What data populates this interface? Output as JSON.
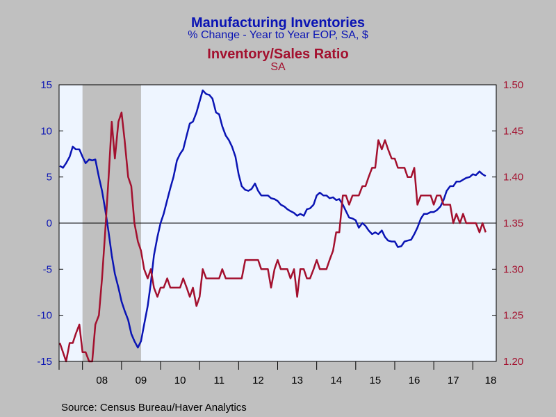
{
  "titles": {
    "line1": "Manufacturing Inventories",
    "line2": "% Change - Year to Year    EOP, SA, $",
    "line3": "Inventory/Sales Ratio",
    "line4": "SA"
  },
  "source": "Source:  Census Bureau/Haver Analytics",
  "colors": {
    "blue": "#0a14b4",
    "red": "#a3102e",
    "plot_bg": "#eef5ff",
    "recession": "#c0c0c0",
    "frame_bg": "#c0c0c0"
  },
  "chart_data": {
    "type": "line",
    "x_tick_labels": [
      "08",
      "09",
      "10",
      "11",
      "12",
      "13",
      "14",
      "15",
      "16",
      "17",
      "18"
    ],
    "x_range": [
      2007.4,
      2018.6
    ],
    "recession_band": [
      2008.0,
      2009.5
    ],
    "left_axis": {
      "ticks": [
        "15",
        "10",
        "5",
        "0",
        "-5",
        "-10",
        "-15"
      ],
      "ylim": [
        -15,
        15
      ]
    },
    "right_axis": {
      "ticks": [
        "1.50",
        "1.45",
        "1.40",
        "1.35",
        "1.30",
        "1.25",
        "1.20"
      ],
      "ylim": [
        1.2,
        1.5
      ]
    },
    "zero_line": true,
    "series": [
      {
        "name": "Manufacturing Inventories",
        "axis": "left",
        "color": "#0a14b4",
        "points": [
          [
            2007.42,
            6.2
          ],
          [
            2007.5,
            6.0
          ],
          [
            2007.58,
            6.5
          ],
          [
            2007.67,
            7.2
          ],
          [
            2007.75,
            8.3
          ],
          [
            2007.83,
            8.0
          ],
          [
            2007.92,
            8.0
          ],
          [
            2008.0,
            7.2
          ],
          [
            2008.08,
            6.5
          ],
          [
            2008.17,
            6.9
          ],
          [
            2008.25,
            6.8
          ],
          [
            2008.33,
            6.9
          ],
          [
            2008.42,
            5.0
          ],
          [
            2008.5,
            3.5
          ],
          [
            2008.58,
            1.5
          ],
          [
            2008.67,
            -1.0
          ],
          [
            2008.75,
            -3.5
          ],
          [
            2008.83,
            -5.5
          ],
          [
            2008.92,
            -7.0
          ],
          [
            2009.0,
            -8.5
          ],
          [
            2009.08,
            -9.5
          ],
          [
            2009.17,
            -10.5
          ],
          [
            2009.25,
            -12.0
          ],
          [
            2009.33,
            -12.8
          ],
          [
            2009.42,
            -13.5
          ],
          [
            2009.5,
            -12.8
          ],
          [
            2009.58,
            -11.0
          ],
          [
            2009.67,
            -9.0
          ],
          [
            2009.75,
            -6.5
          ],
          [
            2009.83,
            -3.5
          ],
          [
            2009.92,
            -1.5
          ],
          [
            2010.0,
            0.0
          ],
          [
            2010.08,
            1.0
          ],
          [
            2010.17,
            2.5
          ],
          [
            2010.25,
            3.8
          ],
          [
            2010.33,
            5.0
          ],
          [
            2010.42,
            6.8
          ],
          [
            2010.5,
            7.5
          ],
          [
            2010.58,
            8.0
          ],
          [
            2010.67,
            9.5
          ],
          [
            2010.75,
            10.8
          ],
          [
            2010.83,
            11.0
          ],
          [
            2010.92,
            12.0
          ],
          [
            2011.0,
            13.2
          ],
          [
            2011.08,
            14.4
          ],
          [
            2011.17,
            14.0
          ],
          [
            2011.25,
            13.9
          ],
          [
            2011.33,
            13.5
          ],
          [
            2011.42,
            12.0
          ],
          [
            2011.5,
            11.8
          ],
          [
            2011.58,
            10.5
          ],
          [
            2011.67,
            9.5
          ],
          [
            2011.75,
            9.0
          ],
          [
            2011.83,
            8.3
          ],
          [
            2011.92,
            7.2
          ],
          [
            2012.0,
            5.3
          ],
          [
            2012.08,
            4.0
          ],
          [
            2012.17,
            3.6
          ],
          [
            2012.25,
            3.5
          ],
          [
            2012.33,
            3.7
          ],
          [
            2012.42,
            4.3
          ],
          [
            2012.5,
            3.5
          ],
          [
            2012.58,
            3.0
          ],
          [
            2012.67,
            3.0
          ],
          [
            2012.75,
            3.0
          ],
          [
            2012.83,
            2.7
          ],
          [
            2012.92,
            2.6
          ],
          [
            2013.0,
            2.4
          ],
          [
            2013.08,
            2.0
          ],
          [
            2013.17,
            1.8
          ],
          [
            2013.25,
            1.5
          ],
          [
            2013.33,
            1.3
          ],
          [
            2013.42,
            1.1
          ],
          [
            2013.5,
            0.8
          ],
          [
            2013.58,
            1.0
          ],
          [
            2013.67,
            0.8
          ],
          [
            2013.75,
            1.5
          ],
          [
            2013.83,
            1.6
          ],
          [
            2013.92,
            2.0
          ],
          [
            2014.0,
            3.0
          ],
          [
            2014.08,
            3.3
          ],
          [
            2014.17,
            3.0
          ],
          [
            2014.25,
            3.0
          ],
          [
            2014.33,
            2.7
          ],
          [
            2014.42,
            2.8
          ],
          [
            2014.5,
            2.5
          ],
          [
            2014.58,
            2.6
          ],
          [
            2014.67,
            2.0
          ],
          [
            2014.75,
            1.3
          ],
          [
            2014.83,
            0.6
          ],
          [
            2014.92,
            0.5
          ],
          [
            2015.0,
            0.3
          ],
          [
            2015.08,
            -0.5
          ],
          [
            2015.17,
            0.0
          ],
          [
            2015.25,
            -0.3
          ],
          [
            2015.33,
            -0.8
          ],
          [
            2015.42,
            -1.2
          ],
          [
            2015.5,
            -1.0
          ],
          [
            2015.58,
            -1.2
          ],
          [
            2015.67,
            -0.8
          ],
          [
            2015.75,
            -1.5
          ],
          [
            2015.83,
            -1.9
          ],
          [
            2015.92,
            -2.0
          ],
          [
            2016.0,
            -2.0
          ],
          [
            2016.08,
            -2.6
          ],
          [
            2016.17,
            -2.5
          ],
          [
            2016.25,
            -2.0
          ],
          [
            2016.33,
            -1.9
          ],
          [
            2016.42,
            -1.8
          ],
          [
            2016.5,
            -1.2
          ],
          [
            2016.58,
            -0.5
          ],
          [
            2016.67,
            0.5
          ],
          [
            2016.75,
            1.0
          ],
          [
            2016.83,
            1.0
          ],
          [
            2016.92,
            1.2
          ],
          [
            2017.0,
            1.2
          ],
          [
            2017.08,
            1.4
          ],
          [
            2017.17,
            1.8
          ],
          [
            2017.25,
            2.5
          ],
          [
            2017.33,
            3.5
          ],
          [
            2017.42,
            4.0
          ],
          [
            2017.5,
            4.0
          ],
          [
            2017.58,
            4.5
          ],
          [
            2017.67,
            4.5
          ],
          [
            2017.75,
            4.7
          ],
          [
            2017.83,
            4.9
          ],
          [
            2017.92,
            5.0
          ],
          [
            2018.0,
            5.3
          ],
          [
            2018.08,
            5.2
          ],
          [
            2018.17,
            5.6
          ],
          [
            2018.25,
            5.3
          ],
          [
            2018.33,
            5.1
          ]
        ]
      },
      {
        "name": "Inventory/Sales Ratio",
        "axis": "right",
        "color": "#a3102e",
        "points": [
          [
            2007.42,
            1.22
          ],
          [
            2007.5,
            1.21
          ],
          [
            2007.58,
            1.2
          ],
          [
            2007.67,
            1.22
          ],
          [
            2007.75,
            1.22
          ],
          [
            2007.83,
            1.23
          ],
          [
            2007.92,
            1.24
          ],
          [
            2008.0,
            1.21
          ],
          [
            2008.08,
            1.21
          ],
          [
            2008.17,
            1.2
          ],
          [
            2008.25,
            1.2
          ],
          [
            2008.33,
            1.24
          ],
          [
            2008.42,
            1.25
          ],
          [
            2008.5,
            1.29
          ],
          [
            2008.58,
            1.34
          ],
          [
            2008.67,
            1.4
          ],
          [
            2008.75,
            1.46
          ],
          [
            2008.83,
            1.42
          ],
          [
            2008.92,
            1.46
          ],
          [
            2009.0,
            1.47
          ],
          [
            2009.08,
            1.44
          ],
          [
            2009.17,
            1.4
          ],
          [
            2009.25,
            1.39
          ],
          [
            2009.33,
            1.35
          ],
          [
            2009.42,
            1.33
          ],
          [
            2009.5,
            1.32
          ],
          [
            2009.58,
            1.3
          ],
          [
            2009.67,
            1.29
          ],
          [
            2009.75,
            1.3
          ],
          [
            2009.83,
            1.28
          ],
          [
            2009.92,
            1.27
          ],
          [
            2010.0,
            1.28
          ],
          [
            2010.08,
            1.28
          ],
          [
            2010.17,
            1.29
          ],
          [
            2010.25,
            1.28
          ],
          [
            2010.33,
            1.28
          ],
          [
            2010.42,
            1.28
          ],
          [
            2010.5,
            1.28
          ],
          [
            2010.58,
            1.29
          ],
          [
            2010.67,
            1.28
          ],
          [
            2010.75,
            1.27
          ],
          [
            2010.83,
            1.28
          ],
          [
            2010.92,
            1.26
          ],
          [
            2011.0,
            1.27
          ],
          [
            2011.08,
            1.3
          ],
          [
            2011.17,
            1.29
          ],
          [
            2011.25,
            1.29
          ],
          [
            2011.33,
            1.29
          ],
          [
            2011.42,
            1.29
          ],
          [
            2011.5,
            1.29
          ],
          [
            2011.58,
            1.3
          ],
          [
            2011.67,
            1.29
          ],
          [
            2011.75,
            1.29
          ],
          [
            2011.83,
            1.29
          ],
          [
            2011.92,
            1.29
          ],
          [
            2012.0,
            1.29
          ],
          [
            2012.08,
            1.29
          ],
          [
            2012.17,
            1.31
          ],
          [
            2012.25,
            1.31
          ],
          [
            2012.33,
            1.31
          ],
          [
            2012.42,
            1.31
          ],
          [
            2012.5,
            1.31
          ],
          [
            2012.58,
            1.3
          ],
          [
            2012.67,
            1.3
          ],
          [
            2012.75,
            1.3
          ],
          [
            2012.83,
            1.28
          ],
          [
            2012.92,
            1.3
          ],
          [
            2013.0,
            1.31
          ],
          [
            2013.08,
            1.3
          ],
          [
            2013.17,
            1.3
          ],
          [
            2013.25,
            1.3
          ],
          [
            2013.33,
            1.29
          ],
          [
            2013.42,
            1.3
          ],
          [
            2013.5,
            1.27
          ],
          [
            2013.58,
            1.3
          ],
          [
            2013.67,
            1.3
          ],
          [
            2013.75,
            1.29
          ],
          [
            2013.83,
            1.29
          ],
          [
            2013.92,
            1.3
          ],
          [
            2014.0,
            1.31
          ],
          [
            2014.08,
            1.3
          ],
          [
            2014.17,
            1.3
          ],
          [
            2014.25,
            1.3
          ],
          [
            2014.33,
            1.31
          ],
          [
            2014.42,
            1.32
          ],
          [
            2014.5,
            1.34
          ],
          [
            2014.58,
            1.34
          ],
          [
            2014.67,
            1.38
          ],
          [
            2014.75,
            1.38
          ],
          [
            2014.83,
            1.37
          ],
          [
            2014.92,
            1.38
          ],
          [
            2015.0,
            1.38
          ],
          [
            2015.08,
            1.38
          ],
          [
            2015.17,
            1.39
          ],
          [
            2015.25,
            1.39
          ],
          [
            2015.33,
            1.4
          ],
          [
            2015.42,
            1.41
          ],
          [
            2015.5,
            1.41
          ],
          [
            2015.58,
            1.44
          ],
          [
            2015.67,
            1.43
          ],
          [
            2015.75,
            1.44
          ],
          [
            2015.83,
            1.43
          ],
          [
            2015.92,
            1.42
          ],
          [
            2016.0,
            1.42
          ],
          [
            2016.08,
            1.41
          ],
          [
            2016.17,
            1.41
          ],
          [
            2016.25,
            1.41
          ],
          [
            2016.33,
            1.4
          ],
          [
            2016.42,
            1.4
          ],
          [
            2016.5,
            1.41
          ],
          [
            2016.58,
            1.37
          ],
          [
            2016.67,
            1.38
          ],
          [
            2016.75,
            1.38
          ],
          [
            2016.83,
            1.38
          ],
          [
            2016.92,
            1.38
          ],
          [
            2017.0,
            1.37
          ],
          [
            2017.08,
            1.38
          ],
          [
            2017.17,
            1.38
          ],
          [
            2017.25,
            1.37
          ],
          [
            2017.33,
            1.37
          ],
          [
            2017.42,
            1.37
          ],
          [
            2017.5,
            1.35
          ],
          [
            2017.58,
            1.36
          ],
          [
            2017.67,
            1.35
          ],
          [
            2017.75,
            1.36
          ],
          [
            2017.83,
            1.35
          ],
          [
            2017.92,
            1.35
          ],
          [
            2018.0,
            1.35
          ],
          [
            2018.08,
            1.35
          ],
          [
            2018.17,
            1.34
          ],
          [
            2018.25,
            1.35
          ],
          [
            2018.33,
            1.34
          ]
        ]
      }
    ]
  }
}
